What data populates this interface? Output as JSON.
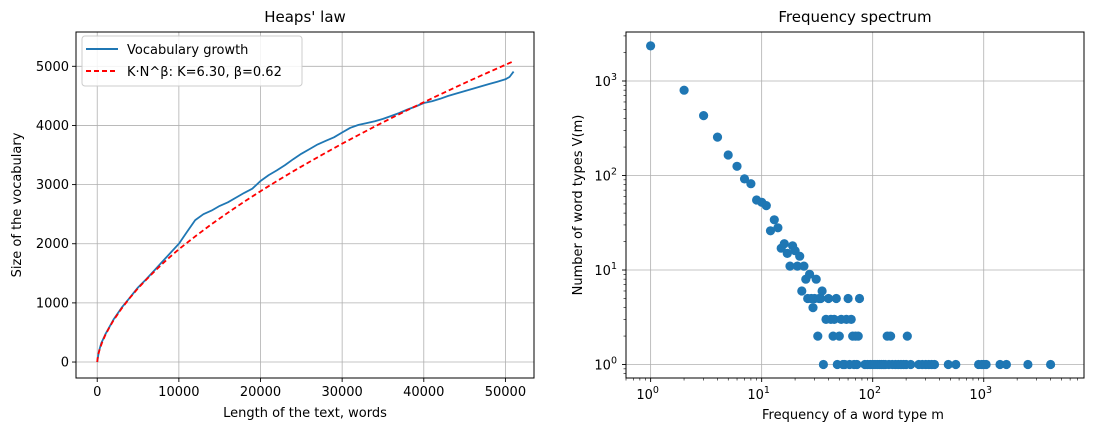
{
  "chart_data": [
    {
      "type": "line",
      "title": "Heaps' law",
      "xlabel": "Length of the text, words",
      "ylabel": "Size of the vocabulary",
      "xlim": [
        -2600,
        53500
      ],
      "ylim": [
        -270,
        5580
      ],
      "xticks": [
        0,
        10000,
        20000,
        30000,
        40000,
        50000
      ],
      "yticks": [
        0,
        1000,
        2000,
        3000,
        4000,
        5000
      ],
      "grid": true,
      "legend_position": "upper-left",
      "colors": {
        "growth": "#1f77b4",
        "fit": "#ff0000"
      },
      "series": [
        {
          "name": "Vocabulary growth",
          "style": "solid",
          "x": [
            0,
            200,
            500,
            1000,
            2000,
            3000,
            4000,
            5000,
            6000,
            7000,
            8000,
            9000,
            10000,
            11000,
            12000,
            13000,
            14000,
            15000,
            16000,
            17000,
            18000,
            19000,
            20000,
            21000,
            22000,
            23000,
            24000,
            25000,
            26000,
            27000,
            28000,
            29000,
            30000,
            31000,
            32000,
            33000,
            34000,
            35000,
            36000,
            37000,
            38000,
            39000,
            40000,
            41000,
            42000,
            43000,
            44000,
            45000,
            46000,
            47000,
            48000,
            49000,
            50000,
            50500,
            51000
          ],
          "y": [
            0,
            180,
            320,
            470,
            720,
            920,
            1090,
            1260,
            1400,
            1550,
            1700,
            1850,
            2000,
            2200,
            2400,
            2500,
            2560,
            2640,
            2700,
            2780,
            2860,
            2930,
            3060,
            3160,
            3240,
            3330,
            3430,
            3520,
            3600,
            3680,
            3740,
            3800,
            3880,
            3960,
            4010,
            4040,
            4070,
            4110,
            4160,
            4210,
            4270,
            4320,
            4380,
            4410,
            4450,
            4500,
            4540,
            4580,
            4620,
            4660,
            4700,
            4740,
            4780,
            4820,
            4910
          ]
        },
        {
          "name": "K·N^β: K=6.30, β=0.62",
          "style": "dashed",
          "x": [
            0,
            100,
            300,
            600,
            1000,
            1500,
            2000,
            3000,
            4000,
            5000,
            6000,
            7000,
            8000,
            9000,
            10000,
            12000,
            14000,
            16000,
            18000,
            20000,
            22000,
            24000,
            26000,
            28000,
            30000,
            32000,
            34000,
            36000,
            38000,
            40000,
            42000,
            44000,
            46000,
            48000,
            50000,
            51000
          ],
          "y": [
            0,
            109,
            215,
            330,
            459,
            589,
            707,
            906,
            1086,
            1246,
            1392,
            1531,
            1662,
            1787,
            1907,
            2124,
            2330,
            2525,
            2711,
            2889,
            3059,
            3225,
            3384,
            3540,
            3691,
            3838,
            3982,
            4122,
            4259,
            4393,
            4524,
            4653,
            4780,
            4904,
            5026,
            5086
          ]
        }
      ]
    },
    {
      "type": "scatter",
      "title": "Frequency spectrum",
      "xlabel": "Frequency of a word type m",
      "ylabel": "Number of word types V(m)",
      "xscale": "log",
      "yscale": "log",
      "xlim": [
        0.6,
        8000
      ],
      "ylim": [
        0.72,
        3300
      ],
      "xticks": [
        {
          "value": 1,
          "base": "10",
          "exp": "0"
        },
        {
          "value": 10,
          "base": "10",
          "exp": "1"
        },
        {
          "value": 100,
          "base": "10",
          "exp": "2"
        },
        {
          "value": 1000,
          "base": "10",
          "exp": "3"
        }
      ],
      "yticks": [
        {
          "value": 1,
          "base": "10",
          "exp": "0"
        },
        {
          "value": 10,
          "base": "10",
          "exp": "1"
        },
        {
          "value": 100,
          "base": "10",
          "exp": "2"
        },
        {
          "value": 1000,
          "base": "10",
          "exp": "3"
        }
      ],
      "grid": true,
      "marker_color": "#1f77b4",
      "points": [
        [
          1,
          2350
        ],
        [
          2,
          800
        ],
        [
          3,
          430
        ],
        [
          4,
          255
        ],
        [
          5,
          165
        ],
        [
          6,
          125
        ],
        [
          7,
          92
        ],
        [
          8,
          82
        ],
        [
          9,
          55
        ],
        [
          10,
          52
        ],
        [
          11,
          48
        ],
        [
          12,
          26
        ],
        [
          13,
          34
        ],
        [
          14,
          28
        ],
        [
          15,
          17
        ],
        [
          16,
          19
        ],
        [
          17,
          15
        ],
        [
          18,
          11
        ],
        [
          19,
          18
        ],
        [
          20,
          16
        ],
        [
          21,
          11
        ],
        [
          22,
          14
        ],
        [
          23,
          6
        ],
        [
          24,
          11
        ],
        [
          25,
          8
        ],
        [
          26,
          5
        ],
        [
          27,
          9
        ],
        [
          28,
          5
        ],
        [
          29,
          4
        ],
        [
          30,
          5
        ],
        [
          31,
          8
        ],
        [
          32,
          2
        ],
        [
          33,
          5
        ],
        [
          34,
          5
        ],
        [
          35,
          6
        ],
        [
          36,
          1
        ],
        [
          38,
          3
        ],
        [
          40,
          5
        ],
        [
          42,
          3
        ],
        [
          44,
          2
        ],
        [
          45,
          3
        ],
        [
          47,
          5
        ],
        [
          48,
          1
        ],
        [
          50,
          2
        ],
        [
          52,
          3
        ],
        [
          54,
          1
        ],
        [
          56,
          1
        ],
        [
          58,
          3
        ],
        [
          60,
          5
        ],
        [
          62,
          1
        ],
        [
          64,
          3
        ],
        [
          66,
          2
        ],
        [
          68,
          1
        ],
        [
          70,
          2
        ],
        [
          72,
          1
        ],
        [
          74,
          2
        ],
        [
          76,
          5
        ],
        [
          85,
          1
        ],
        [
          90,
          1
        ],
        [
          95,
          1
        ],
        [
          100,
          1
        ],
        [
          105,
          1
        ],
        [
          110,
          1
        ],
        [
          115,
          1
        ],
        [
          120,
          1
        ],
        [
          125,
          1
        ],
        [
          130,
          1
        ],
        [
          135,
          2
        ],
        [
          140,
          1
        ],
        [
          145,
          2
        ],
        [
          150,
          1
        ],
        [
          160,
          1
        ],
        [
          170,
          1
        ],
        [
          180,
          1
        ],
        [
          190,
          1
        ],
        [
          200,
          1
        ],
        [
          205,
          2
        ],
        [
          220,
          1
        ],
        [
          260,
          1
        ],
        [
          280,
          1
        ],
        [
          300,
          1
        ],
        [
          320,
          1
        ],
        [
          340,
          1
        ],
        [
          360,
          1
        ],
        [
          480,
          1
        ],
        [
          560,
          1
        ],
        [
          900,
          1
        ],
        [
          960,
          1
        ],
        [
          1000,
          1
        ],
        [
          1050,
          1
        ],
        [
          1400,
          1
        ],
        [
          1600,
          1
        ],
        [
          2500,
          1
        ],
        [
          4000,
          1
        ]
      ]
    }
  ]
}
